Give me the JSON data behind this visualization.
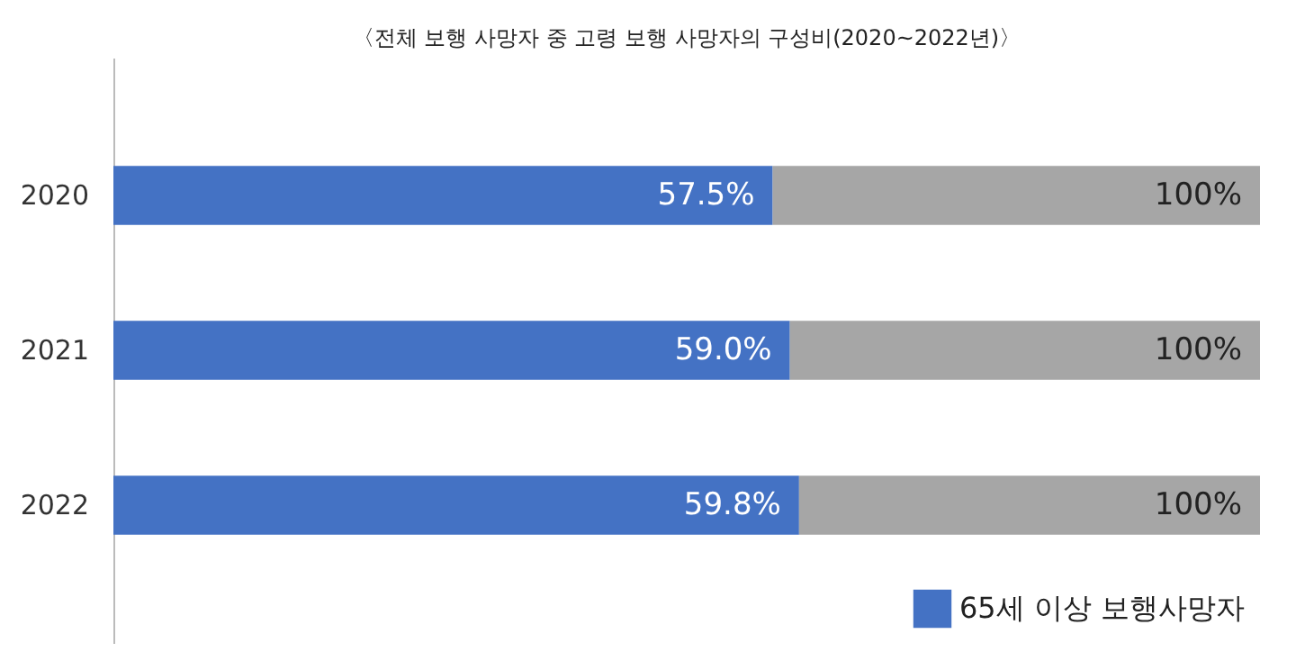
{
  "chart_data": {
    "type": "bar",
    "orientation": "horizontal",
    "stacked": true,
    "title": "〈전체 보행 사망자 중 고령 보행 사망자의 구성비(2020~2022년)〉",
    "categories": [
      "2020",
      "2021",
      "2022"
    ],
    "xlim": [
      0,
      100
    ],
    "tick_labels": "y",
    "grid": false,
    "legend": "bottom right",
    "totals": [
      "100%",
      "100%",
      "100%"
    ],
    "series": [
      {
        "name": "65세 이상 보행사망자",
        "color": "#4472c4",
        "values": [
          57.5,
          59.0,
          59.8
        ],
        "value_labels": [
          "57.5%",
          "59.0%",
          "59.8%"
        ]
      },
      {
        "color": "#a6a6a6",
        "values": [
          42.5,
          41.0,
          40.2
        ]
      }
    ]
  }
}
